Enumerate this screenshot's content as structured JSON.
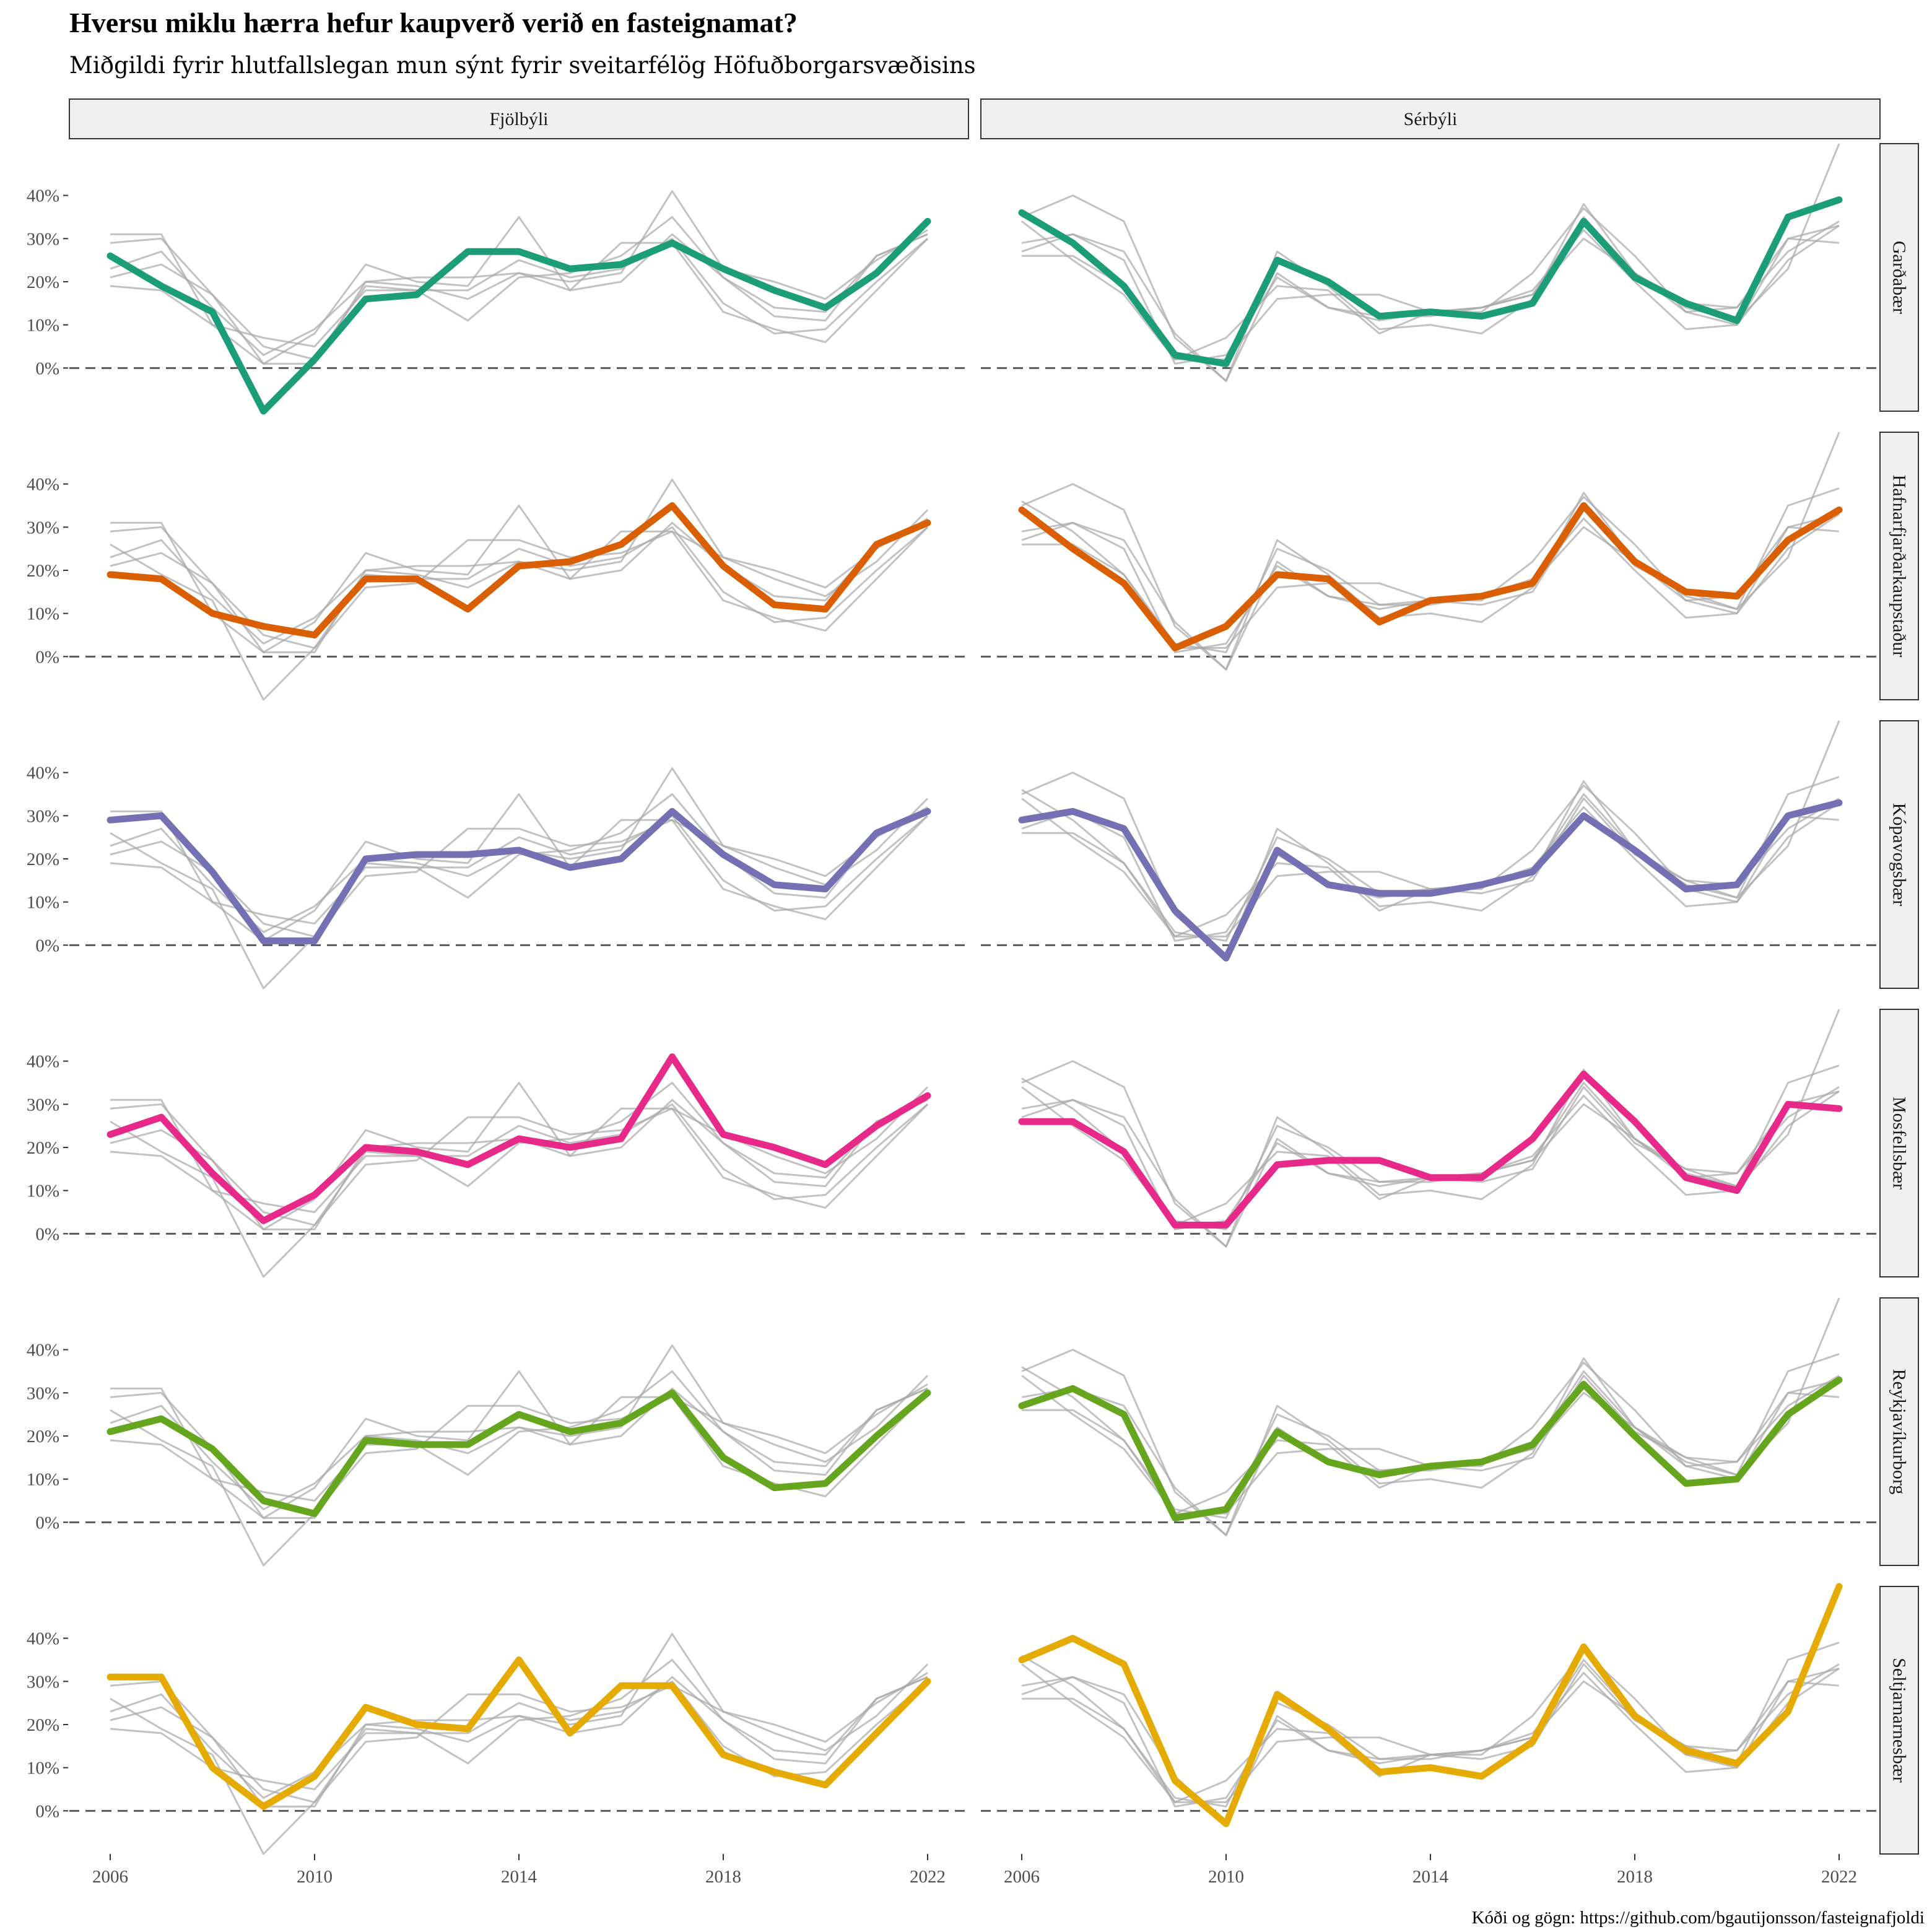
{
  "chart_data": {
    "type": "line",
    "title": "Hversu miklu hærra hefur kaupverð verið en fasteignamat?",
    "subtitle": "Miðgildi fyrir hlutfallslegan mun sýnt fyrir sveitarfélög Höfuðborgarsvæðisins",
    "caption": "Kóði og gögn: https://github.com/bgautijonsson/fasteignafjoldi",
    "columns": [
      "Fjölbýli",
      "Sérbýli"
    ],
    "rows": [
      "Garðabær",
      "Hafnarfjarðarkaupstaður",
      "Kópavogsbær",
      "Mosfellsbær",
      "Reykjavíkurborg",
      "Seltjarnarnesbær"
    ],
    "x": [
      2006,
      2007,
      2008,
      2009,
      2010,
      2011,
      2012,
      2013,
      2014,
      2015,
      2016,
      2017,
      2018,
      2019,
      2020,
      2021,
      2022
    ],
    "x_ticks": [
      2006,
      2010,
      2014,
      2018,
      2022
    ],
    "x_tick_labels": [
      "2006",
      "2010",
      "2014",
      "2018",
      "2022"
    ],
    "y_ticks": [
      0,
      0.1,
      0.2,
      0.3,
      0.4
    ],
    "y_tick_labels": [
      "0%",
      "10%",
      "20%",
      "30%",
      "40%"
    ],
    "ylim": [
      -0.1,
      0.52
    ],
    "xlim": [
      2005.2,
      2022.8
    ],
    "reference_line": {
      "y": 0,
      "style": "dashed",
      "color": "#5a5a5a"
    },
    "background_series_color": "#a8a8a8",
    "series_colors": {
      "Garðabær": "#1b9e77",
      "Hafnarfjarðarkaupstaður": "#d95f02",
      "Kópavogsbær": "#7570b3",
      "Mosfellsbær": "#e7298a",
      "Reykjavíkurborg": "#66a61e",
      "Seltjarnarnesbær": "#e6ab02"
    },
    "series": {
      "Fjölbýli": {
        "Garðabær": [
          0.26,
          0.19,
          0.13,
          -0.1,
          0.02,
          0.16,
          0.17,
          0.27,
          0.27,
          0.23,
          0.24,
          0.29,
          0.23,
          0.18,
          0.14,
          0.22,
          0.34
        ],
        "Hafnarfjarðarkaupstaður": [
          0.19,
          0.18,
          0.1,
          0.07,
          0.05,
          0.18,
          0.18,
          0.11,
          0.21,
          0.22,
          0.26,
          0.35,
          0.21,
          0.12,
          0.11,
          0.26,
          0.31
        ],
        "Kópavogsbær": [
          0.29,
          0.3,
          0.17,
          0.01,
          0.01,
          0.2,
          0.21,
          0.21,
          0.22,
          0.18,
          0.2,
          0.31,
          0.21,
          0.14,
          0.13,
          0.26,
          0.31
        ],
        "Mosfellsbær": [
          0.23,
          0.27,
          0.14,
          0.03,
          0.09,
          0.2,
          0.19,
          0.16,
          0.22,
          0.2,
          0.22,
          0.41,
          0.23,
          0.2,
          0.16,
          0.25,
          0.32
        ],
        "Reykjavíkurborg": [
          0.21,
          0.24,
          0.17,
          0.05,
          0.02,
          0.19,
          0.18,
          0.18,
          0.25,
          0.21,
          0.23,
          0.3,
          0.15,
          0.08,
          0.09,
          0.2,
          0.3
        ],
        "Seltjarnarnesbær": [
          0.31,
          0.31,
          0.1,
          0.01,
          0.08,
          0.24,
          0.2,
          0.19,
          0.35,
          0.18,
          0.29,
          0.29,
          0.13,
          0.09,
          0.06,
          0.18,
          0.3
        ]
      },
      "Sérbýli": {
        "Garðabær": [
          0.36,
          0.29,
          0.19,
          0.03,
          0.01,
          0.25,
          0.2,
          0.12,
          0.13,
          0.12,
          0.15,
          0.34,
          0.21,
          0.15,
          0.11,
          0.35,
          0.39
        ],
        "Hafnarfjarðarkaupstaður": [
          0.34,
          0.25,
          0.17,
          0.02,
          0.07,
          0.19,
          0.18,
          0.08,
          0.13,
          0.14,
          0.17,
          0.35,
          0.22,
          0.15,
          0.14,
          0.27,
          0.34
        ],
        "Kópavogsbær": [
          0.29,
          0.31,
          0.27,
          0.08,
          -0.03,
          0.22,
          0.14,
          0.12,
          0.12,
          0.14,
          0.17,
          0.3,
          0.22,
          0.13,
          0.14,
          0.3,
          0.33
        ],
        "Mosfellsbær": [
          0.26,
          0.26,
          0.19,
          0.02,
          0.02,
          0.16,
          0.17,
          0.17,
          0.13,
          0.13,
          0.22,
          0.37,
          0.26,
          0.13,
          0.1,
          0.3,
          0.29
        ],
        "Reykjavíkurborg": [
          0.27,
          0.31,
          0.25,
          0.01,
          0.03,
          0.21,
          0.14,
          0.11,
          0.13,
          0.14,
          0.18,
          0.32,
          0.2,
          0.09,
          0.1,
          0.25,
          0.33
        ],
        "Seltjarnarnesbær": [
          0.35,
          0.4,
          0.34,
          0.07,
          -0.03,
          0.27,
          0.19,
          0.09,
          0.1,
          0.08,
          0.16,
          0.38,
          0.22,
          0.14,
          0.11,
          0.23,
          0.52
        ]
      }
    }
  }
}
